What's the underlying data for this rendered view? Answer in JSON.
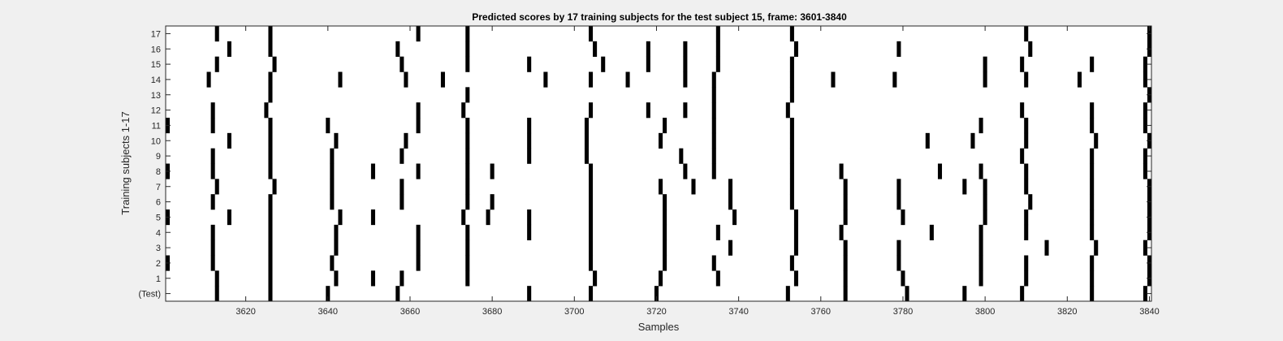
{
  "chart_data": {
    "type": "heatmap",
    "title": "Predicted scores by 17 training subjects for the test subject 15, frame: 3601-3840",
    "xlabel": "Samples",
    "ylabel": "Training subjects 1-17",
    "xlim": [
      3601,
      3840
    ],
    "xticks": [
      3620,
      3640,
      3660,
      3680,
      3700,
      3720,
      3740,
      3760,
      3780,
      3800,
      3820,
      3840
    ],
    "row_labels": [
      "(Test)",
      "1",
      "2",
      "3",
      "4",
      "5",
      "6",
      "7",
      "8",
      "9",
      "10",
      "11",
      "12",
      "13",
      "14",
      "15",
      "16",
      "17"
    ],
    "background_color": "#ffffff",
    "mark_color": "#000000",
    "rows": [
      {
        "label": "(Test)",
        "marks": [
          3613,
          3626,
          3640,
          3657,
          3689,
          3704,
          3720,
          3752,
          3766,
          3781,
          3795,
          3809,
          3826,
          3839
        ]
      },
      {
        "label": "1",
        "marks": [
          3613,
          3626,
          3642,
          3651,
          3658,
          3674,
          3705,
          3721,
          3735,
          3754,
          3766,
          3780,
          3799,
          3810,
          3826,
          3840
        ]
      },
      {
        "label": "2",
        "marks": [
          3601,
          3612,
          3626,
          3641,
          3662,
          3674,
          3704,
          3722,
          3734,
          3753,
          3766,
          3779,
          3799,
          3810,
          3826,
          3840
        ]
      },
      {
        "label": "3",
        "marks": [
          3612,
          3626,
          3642,
          3662,
          3674,
          3704,
          3722,
          3738,
          3754,
          3766,
          3779,
          3799,
          3815,
          3827,
          3839
        ]
      },
      {
        "label": "4",
        "marks": [
          3612,
          3626,
          3642,
          3662,
          3674,
          3689,
          3704,
          3722,
          3735,
          3754,
          3765,
          3787,
          3799,
          3810,
          3826,
          3840
        ]
      },
      {
        "label": "5",
        "marks": [
          3601,
          3616,
          3626,
          3643,
          3651,
          3673,
          3679,
          3689,
          3704,
          3722,
          3739,
          3754,
          3766,
          3780,
          3800,
          3810,
          3826,
          3840
        ]
      },
      {
        "label": "6",
        "marks": [
          3612,
          3626,
          3641,
          3658,
          3674,
          3680,
          3704,
          3722,
          3738,
          3753,
          3766,
          3779,
          3800,
          3811,
          3826,
          3840
        ]
      },
      {
        "label": "7",
        "marks": [
          3613,
          3627,
          3641,
          3658,
          3674,
          3704,
          3721,
          3729,
          3738,
          3753,
          3766,
          3779,
          3795,
          3800,
          3810,
          3826,
          3840
        ]
      },
      {
        "label": "8",
        "marks": [
          3601,
          3612,
          3626,
          3641,
          3651,
          3662,
          3674,
          3680,
          3704,
          3727,
          3734,
          3753,
          3765,
          3789,
          3799,
          3810,
          3826,
          3839
        ]
      },
      {
        "label": "9",
        "marks": [
          3612,
          3626,
          3641,
          3658,
          3674,
          3689,
          3703,
          3726,
          3734,
          3753,
          3809,
          3826,
          3839
        ]
      },
      {
        "label": "10",
        "marks": [
          3616,
          3626,
          3642,
          3659,
          3674,
          3689,
          3703,
          3721,
          3734,
          3753,
          3786,
          3797,
          3810,
          3827,
          3840
        ]
      },
      {
        "label": "11",
        "marks": [
          3601,
          3612,
          3626,
          3640,
          3662,
          3674,
          3689,
          3703,
          3722,
          3734,
          3753,
          3799,
          3810,
          3826,
          3839
        ]
      },
      {
        "label": "12",
        "marks": [
          3612,
          3625,
          3662,
          3673,
          3704,
          3718,
          3727,
          3734,
          3752,
          3809,
          3826,
          3839
        ]
      },
      {
        "label": "13",
        "marks": [
          3626,
          3674,
          3734,
          3753,
          3840
        ]
      },
      {
        "label": "14",
        "marks": [
          3611,
          3626,
          3643,
          3659,
          3668,
          3693,
          3704,
          3713,
          3727,
          3734,
          3753,
          3763,
          3778,
          3800,
          3810,
          3823,
          3839
        ]
      },
      {
        "label": "15",
        "marks": [
          3613,
          3627,
          3658,
          3674,
          3689,
          3707,
          3718,
          3727,
          3735,
          3753,
          3800,
          3809,
          3826,
          3839
        ]
      },
      {
        "label": "16",
        "marks": [
          3616,
          3626,
          3657,
          3674,
          3705,
          3718,
          3727,
          3735,
          3754,
          3779,
          3811,
          3840
        ]
      },
      {
        "label": "17",
        "marks": [
          3613,
          3626,
          3662,
          3674,
          3704,
          3735,
          3753,
          3810,
          3840
        ]
      }
    ]
  }
}
